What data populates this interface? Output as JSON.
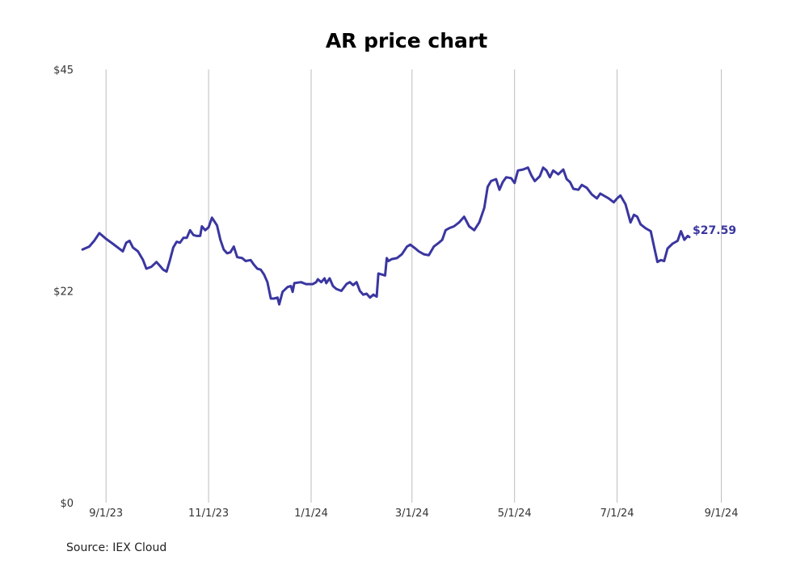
{
  "chart_data": {
    "type": "line",
    "title": "AR price chart",
    "source": "Source: IEX Cloud",
    "xlabel": "",
    "ylabel": "",
    "y_ticks": [
      "$0",
      "$22",
      "$45"
    ],
    "y_tick_values": [
      0,
      22,
      45
    ],
    "ylim": [
      0,
      45
    ],
    "x_ticks": [
      "9/1/23",
      "11/1/23",
      "1/1/24",
      "3/1/24",
      "5/1/24",
      "7/1/24",
      "9/1/24"
    ],
    "x_tick_dates": [
      "2023-09-01",
      "2023-11-01",
      "2024-01-01",
      "2024-03-01",
      "2024-05-01",
      "2024-07-01",
      "2024-09-01"
    ],
    "xlim": [
      "2023-08-17",
      "2024-09-19"
    ],
    "grid": "vertical",
    "line_color": "#3a36a0",
    "end_label": "$27.59",
    "series": [
      {
        "values": [
          [
            "2023-08-18",
            26.3
          ],
          [
            "2023-08-22",
            26.6
          ],
          [
            "2023-08-25",
            27.2
          ],
          [
            "2023-08-28",
            28.0
          ],
          [
            "2023-09-01",
            27.4
          ],
          [
            "2023-09-05",
            26.9
          ],
          [
            "2023-09-08",
            26.5
          ],
          [
            "2023-09-11",
            26.1
          ],
          [
            "2023-09-13",
            27.0
          ],
          [
            "2023-09-15",
            27.2
          ],
          [
            "2023-09-17",
            26.5
          ],
          [
            "2023-09-20",
            26.1
          ],
          [
            "2023-09-23",
            25.2
          ],
          [
            "2023-09-25",
            24.3
          ],
          [
            "2023-09-28",
            24.5
          ],
          [
            "2023-10-01",
            25.0
          ],
          [
            "2023-10-03",
            24.6
          ],
          [
            "2023-10-05",
            24.2
          ],
          [
            "2023-10-07",
            24.0
          ],
          [
            "2023-10-09",
            25.2
          ],
          [
            "2023-10-11",
            26.5
          ],
          [
            "2023-10-13",
            27.1
          ],
          [
            "2023-10-15",
            27.0
          ],
          [
            "2023-10-17",
            27.5
          ],
          [
            "2023-10-19",
            27.5
          ],
          [
            "2023-10-21",
            28.3
          ],
          [
            "2023-10-23",
            27.8
          ],
          [
            "2023-10-25",
            27.7
          ],
          [
            "2023-10-27",
            27.7
          ],
          [
            "2023-10-28",
            28.7
          ],
          [
            "2023-10-30",
            28.3
          ],
          [
            "2023-11-01",
            28.6
          ],
          [
            "2023-11-03",
            29.6
          ],
          [
            "2023-11-06",
            28.8
          ],
          [
            "2023-11-08",
            27.3
          ],
          [
            "2023-11-10",
            26.3
          ],
          [
            "2023-11-12",
            25.9
          ],
          [
            "2023-11-14",
            26.0
          ],
          [
            "2023-11-16",
            26.6
          ],
          [
            "2023-11-18",
            25.5
          ],
          [
            "2023-11-21",
            25.4
          ],
          [
            "2023-11-23",
            25.1
          ],
          [
            "2023-11-26",
            25.2
          ],
          [
            "2023-11-28",
            24.7
          ],
          [
            "2023-11-30",
            24.3
          ],
          [
            "2023-12-02",
            24.2
          ],
          [
            "2023-12-04",
            23.7
          ],
          [
            "2023-12-06",
            22.9
          ],
          [
            "2023-12-08",
            21.2
          ],
          [
            "2023-12-10",
            21.2
          ],
          [
            "2023-12-12",
            21.3
          ],
          [
            "2023-12-13",
            20.6
          ],
          [
            "2023-12-15",
            21.9
          ],
          [
            "2023-12-18",
            22.4
          ],
          [
            "2023-12-20",
            22.5
          ],
          [
            "2023-12-21",
            21.9
          ],
          [
            "2023-12-22",
            22.8
          ],
          [
            "2023-12-26",
            22.9
          ],
          [
            "2023-12-29",
            22.7
          ],
          [
            "2024-01-02",
            22.7
          ],
          [
            "2024-01-04",
            22.9
          ],
          [
            "2024-01-05",
            23.2
          ],
          [
            "2024-01-07",
            22.9
          ],
          [
            "2024-01-09",
            23.3
          ],
          [
            "2024-01-10",
            22.8
          ],
          [
            "2024-01-12",
            23.3
          ],
          [
            "2024-01-14",
            22.5
          ],
          [
            "2024-01-16",
            22.2
          ],
          [
            "2024-01-19",
            22.0
          ],
          [
            "2024-01-22",
            22.7
          ],
          [
            "2024-01-24",
            22.9
          ],
          [
            "2024-01-26",
            22.6
          ],
          [
            "2024-01-28",
            22.9
          ],
          [
            "2024-01-30",
            22.0
          ],
          [
            "2024-02-01",
            21.6
          ],
          [
            "2024-02-03",
            21.7
          ],
          [
            "2024-02-05",
            21.3
          ],
          [
            "2024-02-07",
            21.6
          ],
          [
            "2024-02-09",
            21.4
          ],
          [
            "2024-02-10",
            23.8
          ],
          [
            "2024-02-12",
            23.7
          ],
          [
            "2024-02-14",
            23.6
          ],
          [
            "2024-02-15",
            25.4
          ],
          [
            "2024-02-16",
            25.1
          ],
          [
            "2024-02-18",
            25.3
          ],
          [
            "2024-02-21",
            25.4
          ],
          [
            "2024-02-24",
            25.8
          ],
          [
            "2024-02-27",
            26.6
          ],
          [
            "2024-02-29",
            26.8
          ],
          [
            "2024-03-03",
            26.4
          ],
          [
            "2024-03-05",
            26.1
          ],
          [
            "2024-03-08",
            25.8
          ],
          [
            "2024-03-11",
            25.7
          ],
          [
            "2024-03-14",
            26.6
          ],
          [
            "2024-03-17",
            27.0
          ],
          [
            "2024-03-19",
            27.3
          ],
          [
            "2024-03-21",
            28.3
          ],
          [
            "2024-03-23",
            28.5
          ],
          [
            "2024-03-26",
            28.7
          ],
          [
            "2024-03-29",
            29.1
          ],
          [
            "2024-04-01",
            29.7
          ],
          [
            "2024-04-04",
            28.7
          ],
          [
            "2024-04-07",
            28.3
          ],
          [
            "2024-04-10",
            29.1
          ],
          [
            "2024-04-13",
            30.6
          ],
          [
            "2024-04-15",
            32.8
          ],
          [
            "2024-04-17",
            33.4
          ],
          [
            "2024-04-20",
            33.6
          ],
          [
            "2024-04-22",
            32.5
          ],
          [
            "2024-04-24",
            33.3
          ],
          [
            "2024-04-26",
            33.8
          ],
          [
            "2024-04-29",
            33.7
          ],
          [
            "2024-05-01",
            33.2
          ],
          [
            "2024-05-03",
            34.5
          ],
          [
            "2024-05-06",
            34.6
          ],
          [
            "2024-05-09",
            34.8
          ],
          [
            "2024-05-11",
            34.0
          ],
          [
            "2024-05-13",
            33.4
          ],
          [
            "2024-05-16",
            33.9
          ],
          [
            "2024-05-18",
            34.8
          ],
          [
            "2024-05-20",
            34.5
          ],
          [
            "2024-05-22",
            33.8
          ],
          [
            "2024-05-24",
            34.5
          ],
          [
            "2024-05-27",
            34.1
          ],
          [
            "2024-05-30",
            34.6
          ],
          [
            "2024-06-01",
            33.6
          ],
          [
            "2024-06-03",
            33.3
          ],
          [
            "2024-06-05",
            32.6
          ],
          [
            "2024-06-08",
            32.5
          ],
          [
            "2024-06-10",
            33.0
          ],
          [
            "2024-06-13",
            32.7
          ],
          [
            "2024-06-16",
            32.0
          ],
          [
            "2024-06-19",
            31.6
          ],
          [
            "2024-06-21",
            32.1
          ],
          [
            "2024-06-24",
            31.8
          ],
          [
            "2024-06-26",
            31.6
          ],
          [
            "2024-06-29",
            31.2
          ],
          [
            "2024-07-01",
            31.6
          ],
          [
            "2024-07-03",
            31.9
          ],
          [
            "2024-07-06",
            31.0
          ],
          [
            "2024-07-09",
            29.1
          ],
          [
            "2024-07-11",
            29.9
          ],
          [
            "2024-07-13",
            29.7
          ],
          [
            "2024-07-15",
            28.9
          ],
          [
            "2024-07-18",
            28.5
          ],
          [
            "2024-07-21",
            28.2
          ],
          [
            "2024-07-23",
            26.6
          ],
          [
            "2024-07-25",
            25.0
          ],
          [
            "2024-07-27",
            25.2
          ],
          [
            "2024-07-29",
            25.1
          ],
          [
            "2024-07-31",
            26.4
          ],
          [
            "2024-08-03",
            26.9
          ],
          [
            "2024-08-06",
            27.2
          ],
          [
            "2024-08-08",
            28.2
          ],
          [
            "2024-08-10",
            27.3
          ],
          [
            "2024-08-12",
            27.7
          ],
          [
            "2024-08-13",
            27.59
          ]
        ]
      }
    ]
  }
}
